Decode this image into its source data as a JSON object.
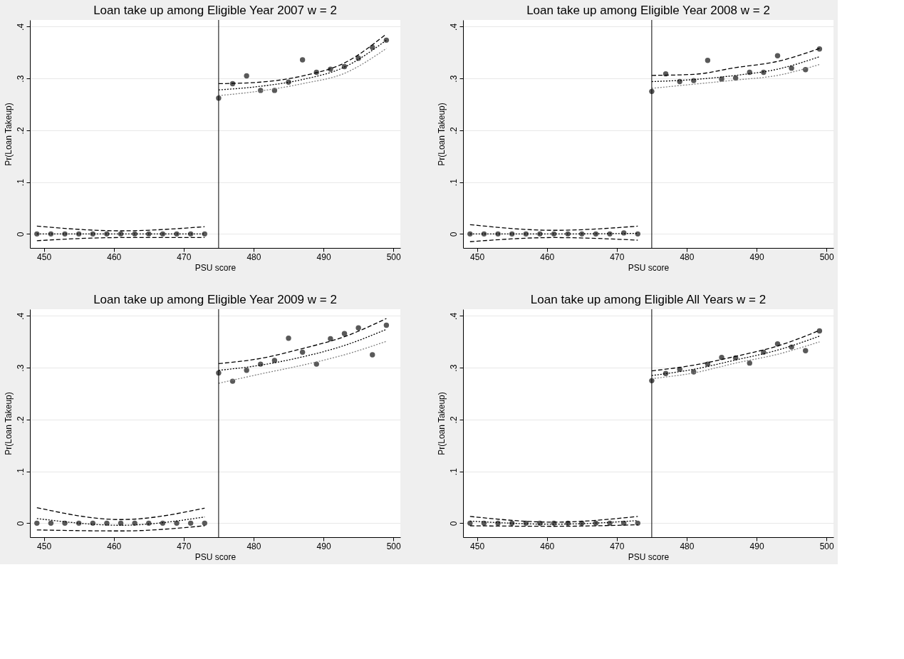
{
  "chart_data": [
    {
      "type": "scatter",
      "title": "Loan take up among Eligible Year 2007 w = 2",
      "xlabel": "PSU score",
      "ylabel": "Pr(Loan Takeup)",
      "xlim": [
        448,
        501
      ],
      "xticks": [
        450,
        460,
        470,
        480,
        490,
        500
      ],
      "ylim": [
        -0.027,
        0.413
      ],
      "yticks": [
        0,
        {
          "value": 0.1,
          "label": ".1"
        },
        {
          "value": 0.2,
          "label": ".2"
        },
        {
          "value": 0.3,
          "label": ".3"
        },
        {
          "value": 0.4,
          "label": ".4"
        }
      ],
      "grid": "y",
      "x": [
        449,
        451,
        453,
        455,
        457,
        459,
        461,
        463,
        465,
        467,
        469,
        471,
        473,
        475,
        477,
        479,
        481,
        483,
        485,
        487,
        489,
        491,
        493,
        495,
        497,
        499
      ],
      "series": [
        {
          "marker": "circle",
          "color": "#595959",
          "values": [
            0,
            0,
            0,
            0,
            0,
            0,
            0,
            0,
            0,
            0,
            0,
            0,
            0,
            0.262,
            0.29,
            0.305,
            0.277,
            0.277,
            0.293,
            0.336,
            0.312,
            0.318,
            0.323,
            0.339,
            0.36,
            0.374
          ]
        },
        {
          "type": "line",
          "color": "#000000",
          "line_style": "dashed",
          "x": [
            449,
            461,
            473
          ],
          "values": [
            0.015,
            0.006,
            0.014
          ]
        },
        {
          "type": "line",
          "color": "#000000",
          "line_style": "dotted",
          "x": [
            449,
            461,
            473
          ],
          "values": [
            0,
            0,
            0
          ]
        },
        {
          "type": "line",
          "color": "#000000",
          "line_style": "dashed",
          "x": [
            449,
            461,
            473
          ],
          "values": [
            -0.013,
            -0.007,
            -0.007
          ]
        },
        {
          "type": "line",
          "color": "#000000",
          "line_style": "dashed",
          "x": [
            475,
            481,
            487,
            493,
            499
          ],
          "values": [
            0.29,
            0.293,
            0.305,
            0.33,
            0.386
          ]
        },
        {
          "type": "line",
          "color": "#000000",
          "line_style": "dotted",
          "x": [
            475,
            481,
            487,
            493,
            499
          ],
          "values": [
            0.278,
            0.285,
            0.298,
            0.322,
            0.374
          ]
        },
        {
          "type": "line",
          "color": "#808080",
          "line_style": "dotted",
          "x": [
            475,
            481,
            487,
            493,
            499
          ],
          "values": [
            0.267,
            0.276,
            0.29,
            0.31,
            0.358
          ]
        }
      ],
      "ref_lines": [
        {
          "axis": "x",
          "value": 475,
          "color": "#000000",
          "line_style": "solid"
        }
      ]
    },
    {
      "type": "scatter",
      "title": "Loan take up among Eligible Year 2008 w = 2",
      "xlabel": "PSU score",
      "ylabel": "Pr(Loan Takeup)",
      "xlim": [
        448,
        501
      ],
      "xticks": [
        450,
        460,
        470,
        480,
        490,
        500
      ],
      "ylim": [
        -0.027,
        0.413
      ],
      "yticks": [
        0,
        {
          "value": 0.1,
          "label": ".1"
        },
        {
          "value": 0.2,
          "label": ".2"
        },
        {
          "value": 0.3,
          "label": ".3"
        },
        {
          "value": 0.4,
          "label": ".4"
        }
      ],
      "grid": "y",
      "x": [
        449,
        451,
        453,
        455,
        457,
        459,
        461,
        463,
        465,
        467,
        469,
        471,
        473,
        475,
        477,
        479,
        481,
        483,
        485,
        487,
        489,
        491,
        493,
        495,
        497,
        499
      ],
      "series": [
        {
          "marker": "circle",
          "color": "#595959",
          "values": [
            0,
            0,
            0,
            0,
            0,
            0,
            0,
            0,
            0,
            0,
            0,
            0.002,
            0,
            0.275,
            0.309,
            0.294,
            0.296,
            0.335,
            0.299,
            0.301,
            0.312,
            0.312,
            0.344,
            0.32,
            0.317,
            0.357
          ]
        },
        {
          "type": "line",
          "color": "#000000",
          "line_style": "dashed",
          "x": [
            449,
            461,
            473
          ],
          "values": [
            0.018,
            0.007,
            0.015
          ]
        },
        {
          "type": "line",
          "color": "#000000",
          "line_style": "dotted",
          "x": [
            449,
            461,
            473
          ],
          "values": [
            0,
            0,
            0.001
          ]
        },
        {
          "type": "line",
          "color": "#000000",
          "line_style": "dashed",
          "x": [
            449,
            461,
            473
          ],
          "values": [
            -0.015,
            -0.007,
            -0.012
          ]
        },
        {
          "type": "line",
          "color": "#000000",
          "line_style": "dashed",
          "x": [
            475,
            481,
            487,
            493,
            499
          ],
          "values": [
            0.306,
            0.308,
            0.321,
            0.333,
            0.358
          ]
        },
        {
          "type": "line",
          "color": "#000000",
          "line_style": "dotted",
          "x": [
            475,
            481,
            487,
            493,
            499
          ],
          "values": [
            0.294,
            0.298,
            0.306,
            0.318,
            0.342
          ]
        },
        {
          "type": "line",
          "color": "#808080",
          "line_style": "dotted",
          "x": [
            475,
            481,
            487,
            493,
            499
          ],
          "values": [
            0.281,
            0.289,
            0.297,
            0.306,
            0.327
          ]
        }
      ],
      "ref_lines": [
        {
          "axis": "x",
          "value": 475,
          "color": "#000000",
          "line_style": "solid"
        }
      ]
    },
    {
      "type": "scatter",
      "title": "Loan take up among Eligible Year 2009 w = 2",
      "xlabel": "PSU score",
      "ylabel": "Pr(Loan Takeup)",
      "xlim": [
        448,
        501
      ],
      "xticks": [
        450,
        460,
        470,
        480,
        490,
        500
      ],
      "ylim": [
        -0.027,
        0.413
      ],
      "yticks": [
        0,
        {
          "value": 0.1,
          "label": ".1"
        },
        {
          "value": 0.2,
          "label": ".2"
        },
        {
          "value": 0.3,
          "label": ".3"
        },
        {
          "value": 0.4,
          "label": ".4"
        }
      ],
      "grid": "y",
      "x": [
        449,
        451,
        453,
        455,
        457,
        459,
        461,
        463,
        465,
        467,
        469,
        471,
        473,
        475,
        477,
        479,
        481,
        483,
        485,
        487,
        489,
        491,
        493,
        495,
        497,
        499
      ],
      "series": [
        {
          "marker": "circle",
          "color": "#595959",
          "values": [
            0,
            0,
            0,
            0,
            0,
            0,
            0,
            0,
            0,
            0,
            0,
            0,
            0,
            0.29,
            0.274,
            0.295,
            0.307,
            0.314,
            0.357,
            0.33,
            0.307,
            0.356,
            0.366,
            0.377,
            0.325,
            0.382
          ]
        },
        {
          "type": "line",
          "color": "#000000",
          "line_style": "dashed",
          "x": [
            449,
            461,
            473
          ],
          "values": [
            0.03,
            0.007,
            0.029
          ]
        },
        {
          "type": "line",
          "color": "#000000",
          "line_style": "dotted",
          "x": [
            449,
            461,
            473
          ],
          "values": [
            0.009,
            -0.004,
            0.012
          ]
        },
        {
          "type": "line",
          "color": "#000000",
          "line_style": "dashed",
          "x": [
            449,
            461,
            473
          ],
          "values": [
            -0.013,
            -0.015,
            -0.005
          ]
        },
        {
          "type": "line",
          "color": "#000000",
          "line_style": "dashed",
          "x": [
            475,
            481,
            487,
            493,
            499
          ],
          "values": [
            0.308,
            0.318,
            0.337,
            0.36,
            0.395
          ]
        },
        {
          "type": "line",
          "color": "#000000",
          "line_style": "dotted",
          "x": [
            475,
            481,
            487,
            493,
            499
          ],
          "values": [
            0.295,
            0.305,
            0.321,
            0.343,
            0.374
          ]
        },
        {
          "type": "line",
          "color": "#808080",
          "line_style": "dotted",
          "x": [
            475,
            481,
            487,
            493,
            499
          ],
          "values": [
            0.27,
            0.288,
            0.305,
            0.325,
            0.351
          ]
        }
      ],
      "ref_lines": [
        {
          "axis": "x",
          "value": 475,
          "color": "#000000",
          "line_style": "solid"
        }
      ]
    },
    {
      "type": "scatter",
      "title": "Loan take up among Eligible All Years w = 2",
      "xlabel": "PSU score",
      "ylabel": "Pr(Loan Takeup)",
      "xlim": [
        448,
        501
      ],
      "xticks": [
        450,
        460,
        470,
        480,
        490,
        500
      ],
      "ylim": [
        -0.027,
        0.413
      ],
      "yticks": [
        0,
        {
          "value": 0.1,
          "label": ".1"
        },
        {
          "value": 0.2,
          "label": ".2"
        },
        {
          "value": 0.3,
          "label": ".3"
        },
        {
          "value": 0.4,
          "label": ".4"
        }
      ],
      "grid": "y",
      "x": [
        449,
        451,
        453,
        455,
        457,
        459,
        461,
        463,
        465,
        467,
        469,
        471,
        473,
        475,
        477,
        479,
        481,
        483,
        485,
        487,
        489,
        491,
        493,
        495,
        497,
        499
      ],
      "series": [
        {
          "marker": "circle",
          "color": "#595959",
          "values": [
            0,
            0,
            0,
            0,
            0,
            0,
            0,
            0,
            0,
            0,
            0,
            0,
            0,
            0.275,
            0.289,
            0.297,
            0.292,
            0.307,
            0.32,
            0.319,
            0.309,
            0.33,
            0.346,
            0.34,
            0.333,
            0.371
          ]
        },
        {
          "type": "line",
          "color": "#000000",
          "line_style": "dashed",
          "x": [
            449,
            461,
            473
          ],
          "values": [
            0.013,
            0.002,
            0.013
          ]
        },
        {
          "type": "line",
          "color": "#000000",
          "line_style": "dotted",
          "x": [
            449,
            461,
            473
          ],
          "values": [
            0.004,
            -0.002,
            0.005
          ]
        },
        {
          "type": "line",
          "color": "#000000",
          "line_style": "dashed",
          "x": [
            449,
            461,
            473
          ],
          "values": [
            -0.005,
            -0.006,
            -0.003
          ]
        },
        {
          "type": "line",
          "color": "#000000",
          "line_style": "dashed",
          "x": [
            475,
            481,
            487,
            493,
            499
          ],
          "values": [
            0.294,
            0.305,
            0.322,
            0.342,
            0.372
          ]
        },
        {
          "type": "line",
          "color": "#000000",
          "line_style": "dotted",
          "x": [
            475,
            481,
            487,
            493,
            499
          ],
          "values": [
            0.285,
            0.297,
            0.315,
            0.334,
            0.361
          ]
        },
        {
          "type": "line",
          "color": "#808080",
          "line_style": "dotted",
          "x": [
            475,
            481,
            487,
            493,
            499
          ],
          "values": [
            0.279,
            0.29,
            0.309,
            0.326,
            0.35
          ]
        }
      ],
      "ref_lines": [
        {
          "axis": "x",
          "value": 475,
          "color": "#000000",
          "line_style": "solid"
        }
      ]
    }
  ]
}
